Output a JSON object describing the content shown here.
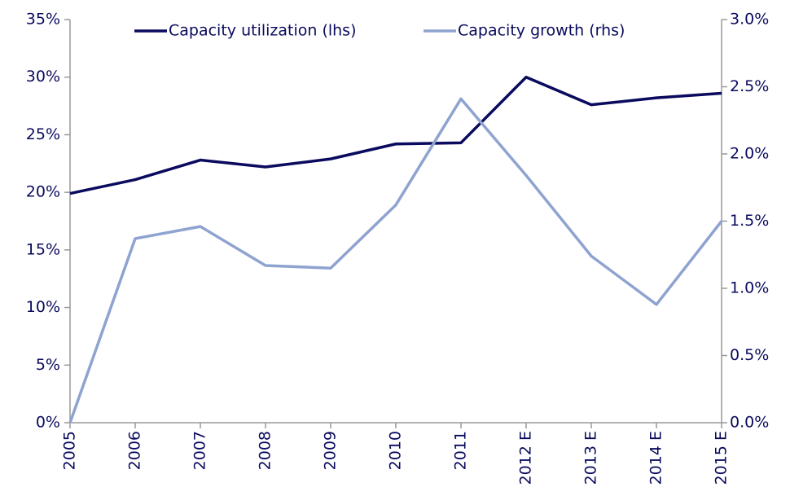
{
  "chart_data": {
    "type": "line",
    "categories": [
      "2005",
      "2006",
      "2007",
      "2008",
      "2009",
      "2010",
      "2011",
      "2012 E",
      "2013 E",
      "2014 E",
      "2015 E"
    ],
    "series": [
      {
        "name": "Capacity utilization (lhs)",
        "color": "#0a0a5e",
        "values": [
          19.9,
          21.1,
          22.8,
          22.2,
          22.9,
          24.2,
          24.3,
          30.0,
          27.6,
          28.2,
          28.6
        ]
      },
      {
        "name": "Capacity growth (rhs)",
        "color": "#8fa3d0",
        "axis": "y2",
        "values": [
          0.0,
          1.37,
          1.46,
          1.17,
          1.15,
          1.62,
          2.41,
          1.84,
          1.24,
          0.88,
          1.5
        ]
      }
    ],
    "ylim": [
      0,
      35
    ],
    "yticks": [
      {
        "value": 0,
        "label": "0%"
      },
      {
        "value": 5,
        "label": "5%"
      },
      {
        "value": 10,
        "label": "10%"
      },
      {
        "value": 15,
        "label": "15%"
      },
      {
        "value": 20,
        "label": "20%"
      },
      {
        "value": 25,
        "label": "25%"
      },
      {
        "value": 30,
        "label": "30%"
      },
      {
        "value": 35,
        "label": "35%"
      }
    ],
    "y2lim": [
      0,
      3.0
    ],
    "y2ticks": [
      {
        "value": 0,
        "label": "0.0%"
      },
      {
        "value": 0.5,
        "label": "0.5%"
      },
      {
        "value": 1.0,
        "label": "1.0%"
      },
      {
        "value": 1.5,
        "label": "1.5%"
      },
      {
        "value": 2.0,
        "label": "2.0%"
      },
      {
        "value": 2.5,
        "label": "2.5%"
      },
      {
        "value": 3.0,
        "label": "3.0%"
      }
    ],
    "grid": false,
    "legend": "top"
  }
}
